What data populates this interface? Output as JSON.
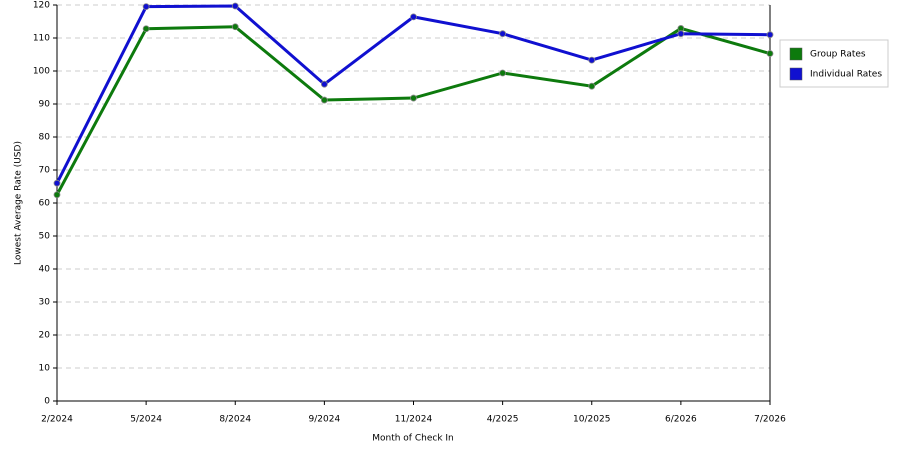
{
  "chart_data": {
    "type": "line",
    "x_label": "Month of Check In",
    "y_label": "Lowest Average Rate (USD)",
    "categories": [
      "2/2024",
      "5/2024",
      "8/2024",
      "9/2024",
      "11/2024",
      "4/2025",
      "10/2025",
      "6/2026",
      "7/2026"
    ],
    "series": [
      {
        "name": "Group Rates",
        "color": "#0d7a0d",
        "values": [
          62.5,
          112.8,
          113.4,
          91.2,
          91.8,
          99.4,
          95.4,
          112.9,
          105.3
        ]
      },
      {
        "name": "Individual Rates",
        "color": "#1010d0",
        "values": [
          66,
          119.5,
          119.7,
          96,
          116.4,
          111.3,
          103.3,
          111.3,
          111
        ]
      }
    ],
    "ylim": [
      0,
      120
    ],
    "yticks": [
      0,
      10,
      20,
      30,
      40,
      50,
      60,
      70,
      80,
      90,
      100,
      110,
      120
    ],
    "grid": true,
    "legend": "right"
  }
}
